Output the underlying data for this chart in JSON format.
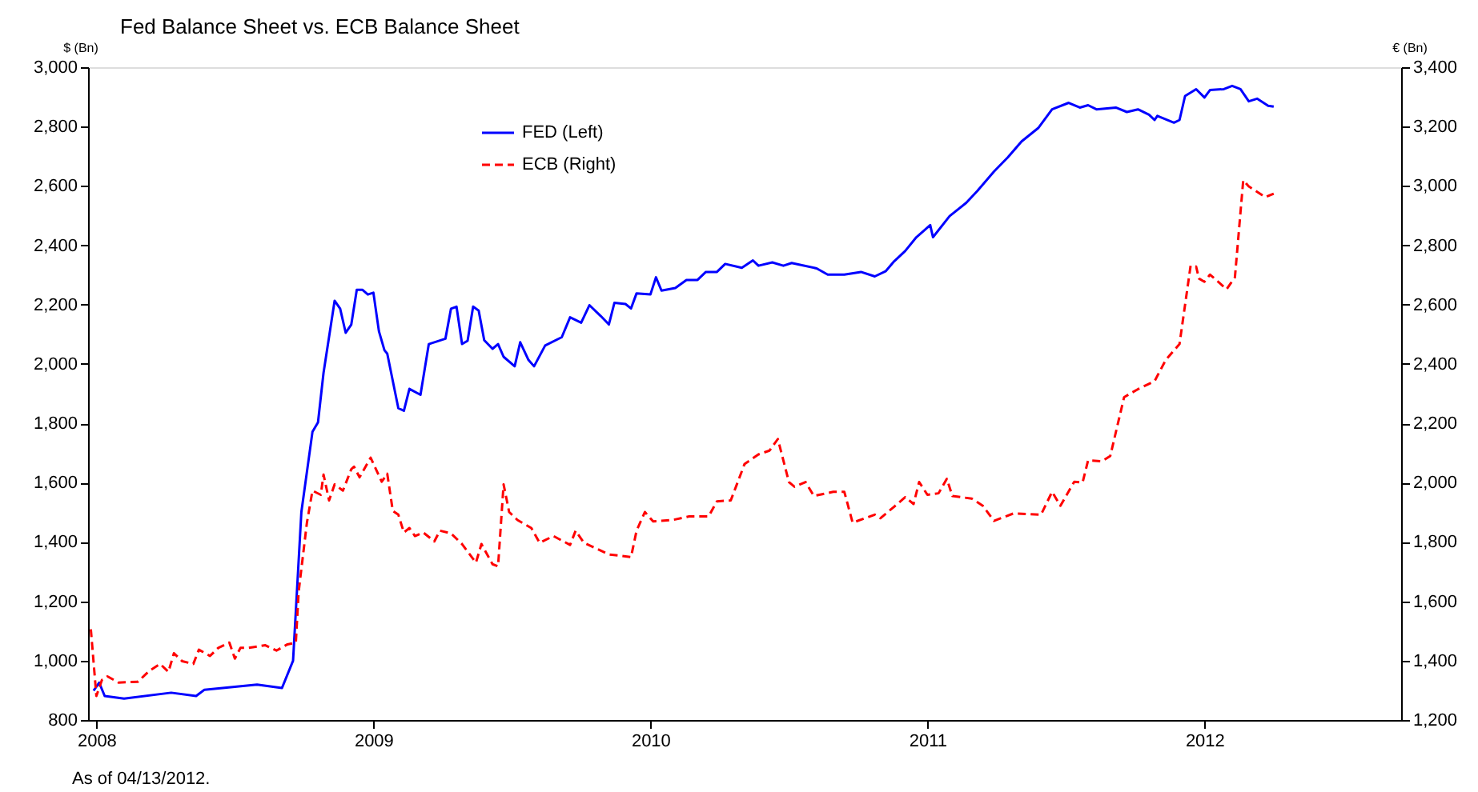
{
  "chart_data": {
    "type": "line",
    "title": "Fed Balance Sheet vs. ECB Balance Sheet",
    "ylabel": "$ (Bn)",
    "y2label": "€ (Bn)",
    "xlim": [
      2007.97,
      2012.71
    ],
    "xticks": [
      2008,
      2009,
      2010,
      2011,
      2012
    ],
    "ylim": [
      800,
      3000
    ],
    "yticks": [
      800,
      {
        "value": 1000,
        "label": "1,000"
      },
      {
        "value": 1200,
        "label": "1,200"
      },
      {
        "value": 1400,
        "label": "1,400"
      },
      {
        "value": 1600,
        "label": "1,600"
      },
      {
        "value": 1800,
        "label": "1,800"
      },
      {
        "value": 2000,
        "label": "2,000"
      },
      {
        "value": 2200,
        "label": "2,200"
      },
      {
        "value": 2400,
        "label": "2,400"
      },
      {
        "value": 2600,
        "label": "2,600"
      },
      {
        "value": 2800,
        "label": "2,800"
      },
      {
        "value": 3000,
        "label": "3,000"
      }
    ],
    "y2lim": [
      1200,
      3400
    ],
    "y2ticks": [
      {
        "value": 1200,
        "label": "1,200"
      },
      {
        "value": 1400,
        "label": "1,400"
      },
      {
        "value": 1600,
        "label": "1,600"
      },
      {
        "value": 1800,
        "label": "1,800"
      },
      {
        "value": 2000,
        "label": "2,000"
      },
      {
        "value": 2200,
        "label": "2,200"
      },
      {
        "value": 2400,
        "label": "2,400"
      },
      {
        "value": 2600,
        "label": "2,600"
      },
      {
        "value": 2800,
        "label": "2,800"
      },
      {
        "value": 3000,
        "label": "3,000"
      },
      {
        "value": 3200,
        "label": "3,200"
      },
      {
        "value": 3400,
        "label": "3,400"
      }
    ],
    "grid": false,
    "legend": "top left",
    "annotations": [
      "As of  04/13/2012."
    ],
    "series": [
      {
        "name": "FED (Left)",
        "color": "#0000ff",
        "line_style": "solid",
        "x": [
          2007.99,
          2008.01,
          2008.03,
          2008.1,
          2008.27,
          2008.36,
          2008.39,
          2008.58,
          2008.67,
          2008.71,
          2008.74,
          2008.78,
          2008.8,
          2008.82,
          2008.86,
          2008.88,
          2008.9,
          2008.92,
          2008.94,
          2008.96,
          2008.98,
          2009.0,
          2009.02,
          2009.04,
          2009.05,
          2009.09,
          2009.11,
          2009.13,
          2009.17,
          2009.2,
          2009.26,
          2009.28,
          2009.3,
          2009.32,
          2009.34,
          2009.36,
          2009.38,
          2009.4,
          2009.43,
          2009.45,
          2009.47,
          2009.51,
          2009.53,
          2009.56,
          2009.58,
          2009.62,
          2009.68,
          2009.71,
          2009.75,
          2009.78,
          2009.82,
          2009.85,
          2009.87,
          2009.91,
          2009.93,
          2009.95,
          2010.0,
          2010.02,
          2010.04,
          2010.09,
          2010.13,
          2010.17,
          2010.2,
          2010.24,
          2010.27,
          2010.33,
          2010.37,
          2010.39,
          2010.44,
          2010.48,
          2010.51,
          2010.6,
          2010.64,
          2010.7,
          2010.76,
          2010.81,
          2010.85,
          2010.88,
          2010.92,
          2010.96,
          2011.01,
          2011.02,
          2011.08,
          2011.14,
          2011.18,
          2011.24,
          2011.29,
          2011.34,
          2011.4,
          2011.45,
          2011.51,
          2011.55,
          2011.58,
          2011.61,
          2011.68,
          2011.72,
          2011.76,
          2011.8,
          2011.82,
          2011.83,
          2011.89,
          2011.91,
          2011.93,
          2011.97,
          2012.0,
          2012.02,
          2012.07,
          2012.1,
          2012.13,
          2012.16,
          2012.19,
          2012.23,
          2012.25
        ],
        "values": [
          899,
          926,
          881,
          872,
          892,
          881,
          902,
          919,
          908,
          1000,
          1501,
          1771,
          1803,
          1970,
          2213,
          2186,
          2105,
          2132,
          2250,
          2250,
          2234,
          2240,
          2110,
          2046,
          2035,
          1851,
          1842,
          1916,
          1896,
          2067,
          2085,
          2186,
          2193,
          2067,
          2078,
          2193,
          2180,
          2080,
          2051,
          2067,
          2024,
          1992,
          2073,
          2013,
          1992,
          2062,
          2090,
          2157,
          2139,
          2198,
          2162,
          2133,
          2206,
          2202,
          2187,
          2238,
          2234,
          2292,
          2247,
          2256,
          2283,
          2283,
          2310,
          2310,
          2337,
          2324,
          2349,
          2331,
          2342,
          2331,
          2340,
          2322,
          2301,
          2301,
          2310,
          2295,
          2313,
          2346,
          2381,
          2427,
          2468,
          2427,
          2498,
          2543,
          2583,
          2648,
          2696,
          2750,
          2795,
          2858,
          2880,
          2864,
          2872,
          2858,
          2864,
          2849,
          2858,
          2840,
          2822,
          2836,
          2813,
          2822,
          2903,
          2926,
          2898,
          2923,
          2926,
          2937,
          2926,
          2885,
          2894,
          2870,
          2867
        ]
      },
      {
        "name": "ECB (Right)",
        "color": "#ff0000",
        "line_style": "dashed",
        "axis": "y2",
        "x": [
          2007.98,
          2008.0,
          2008.02,
          2008.04,
          2008.08,
          2008.15,
          2008.19,
          2008.23,
          2008.26,
          2008.28,
          2008.31,
          2008.35,
          2008.37,
          2008.41,
          2008.44,
          2008.48,
          2008.5,
          2008.52,
          2008.55,
          2008.61,
          2008.65,
          2008.69,
          2008.72,
          2008.73,
          2008.76,
          2008.78,
          2008.81,
          2008.82,
          2008.84,
          2008.86,
          2008.89,
          2008.92,
          2008.93,
          2008.95,
          2008.99,
          2009.03,
          2009.05,
          2009.07,
          2009.09,
          2009.11,
          2009.13,
          2009.15,
          2009.18,
          2009.22,
          2009.24,
          2009.28,
          2009.32,
          2009.37,
          2009.39,
          2009.43,
          2009.45,
          2009.47,
          2009.49,
          2009.52,
          2009.57,
          2009.6,
          2009.65,
          2009.71,
          2009.73,
          2009.76,
          2009.85,
          2009.93,
          2009.95,
          2009.98,
          2010.01,
          2010.08,
          2010.14,
          2010.21,
          2010.24,
          2010.29,
          2010.34,
          2010.39,
          2010.43,
          2010.46,
          2010.5,
          2010.52,
          2010.56,
          2010.59,
          2010.66,
          2010.7,
          2010.73,
          2010.81,
          2010.83,
          2010.88,
          2010.92,
          2010.95,
          2010.97,
          2011.0,
          2011.04,
          2011.07,
          2011.09,
          2011.16,
          2011.2,
          2011.24,
          2011.31,
          2011.41,
          2011.45,
          2011.48,
          2011.53,
          2011.56,
          2011.58,
          2011.63,
          2011.66,
          2011.71,
          2011.76,
          2011.82,
          2011.86,
          2011.91,
          2011.95,
          2011.97,
          2011.98,
          2012.0,
          2012.02,
          2012.08,
          2012.11,
          2012.14,
          2012.16,
          2012.22,
          2012.25
        ],
        "values": [
          1506,
          1281,
          1335,
          1347,
          1326,
          1329,
          1365,
          1389,
          1362,
          1425,
          1398,
          1389,
          1437,
          1416,
          1443,
          1461,
          1407,
          1443,
          1443,
          1452,
          1434,
          1455,
          1461,
          1631,
          1865,
          1973,
          1959,
          2027,
          1940,
          1994,
          1973,
          2045,
          2054,
          2018,
          2084,
          2003,
          2030,
          1905,
          1892,
          1832,
          1847,
          1820,
          1832,
          1802,
          1838,
          1829,
          1793,
          1730,
          1793,
          1725,
          1718,
          1994,
          1901,
          1874,
          1847,
          1797,
          1820,
          1790,
          1838,
          1797,
          1758,
          1749,
          1838,
          1901,
          1869,
          1874,
          1886,
          1886,
          1937,
          1940,
          2063,
          2095,
          2108,
          2147,
          2002,
          1986,
          2002,
          1955,
          1969,
          1969,
          1865,
          1892,
          1880,
          1919,
          1951,
          1928,
          2002,
          1959,
          1964,
          2013,
          1955,
          1946,
          1922,
          1871,
          1896,
          1892,
          1969,
          1922,
          2003,
          2000,
          2075,
          2072,
          2090,
          2288,
          2315,
          2342,
          2413,
          2467,
          2731,
          2728,
          2688,
          2677,
          2701,
          2652,
          2692,
          3019,
          2998,
          2962,
          2974
        ]
      }
    ]
  }
}
